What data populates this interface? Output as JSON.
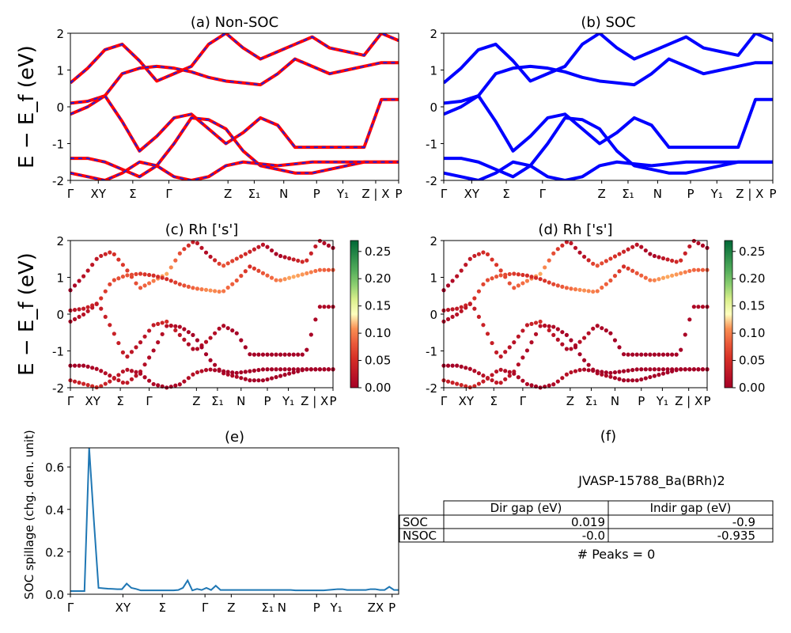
{
  "figure": {
    "ylabel_band": "E − E_f (eV)",
    "ylabel_spillage": "SOC spillage (chg. den. unit)"
  },
  "chart_data": [
    {
      "type": "line",
      "panel": "a",
      "title": "(a) Non-SOC",
      "ylim": [
        -2,
        2
      ],
      "y_ticks": [
        "-2",
        "-1",
        "0",
        "1",
        "2"
      ],
      "x_ticks": [
        "Γ",
        "XY",
        "Σ",
        "Γ",
        "Z",
        "Σ₁",
        "N",
        "P",
        "Y₁",
        "Z | X",
        "P"
      ],
      "style": "red-solid-with-blue-dashes",
      "colors": {
        "band": "#ff0000",
        "dash": "#1f1fe0"
      },
      "series": [
        {
          "values": [
            0.65,
            1.05,
            1.55,
            1.7,
            1.25,
            0.7,
            0.9,
            1.1,
            1.7,
            2.0,
            1.6,
            1.3,
            1.5,
            1.7,
            1.9,
            1.6,
            1.5,
            1.4,
            2.0,
            1.8
          ]
        },
        {
          "values": [
            0.1,
            0.15,
            0.3,
            0.9,
            1.05,
            1.1,
            1.05,
            0.95,
            0.8,
            0.7,
            0.65,
            0.6,
            0.9,
            1.3,
            1.1,
            0.9,
            1.0,
            1.1,
            1.2,
            1.2
          ]
        },
        {
          "values": [
            -0.2,
            0.0,
            0.3,
            -0.4,
            -1.2,
            -0.8,
            -0.3,
            -0.2,
            -0.6,
            -1.0,
            -0.7,
            -0.3,
            -0.5,
            -1.1,
            -1.1,
            -1.1,
            -1.1,
            -1.1,
            0.2,
            0.2
          ]
        },
        {
          "values": [
            -1.4,
            -1.4,
            -1.5,
            -1.7,
            -1.9,
            -1.6,
            -1.0,
            -0.3,
            -0.35,
            -0.6,
            -1.2,
            -1.6,
            -1.7,
            -1.8,
            -1.8,
            -1.7,
            -1.6,
            -1.5,
            -1.5,
            -1.5
          ]
        },
        {
          "values": [
            -1.8,
            -1.9,
            -2.0,
            -1.8,
            -1.5,
            -1.6,
            -1.9,
            -2.0,
            -1.9,
            -1.6,
            -1.5,
            -1.55,
            -1.6,
            -1.55,
            -1.5,
            -1.5,
            -1.5,
            -1.5,
            -1.5,
            -1.5
          ]
        }
      ]
    },
    {
      "type": "line",
      "panel": "b",
      "title": "(b) SOC",
      "ylim": [
        -2,
        2
      ],
      "y_ticks": [
        "-2",
        "-1",
        "0",
        "1",
        "2"
      ],
      "x_ticks": [
        "Γ",
        "XY",
        "Σ",
        "Γ",
        "Z",
        "Σ₁",
        "N",
        "P",
        "Y₁",
        "Z | X",
        "P"
      ],
      "colors": {
        "band": "#0000ff"
      },
      "series": [
        {
          "values": [
            0.65,
            1.05,
            1.55,
            1.7,
            1.25,
            0.7,
            0.9,
            1.1,
            1.7,
            2.0,
            1.6,
            1.3,
            1.5,
            1.7,
            1.9,
            1.6,
            1.5,
            1.4,
            2.0,
            1.8
          ]
        },
        {
          "values": [
            0.1,
            0.15,
            0.3,
            0.9,
            1.05,
            1.1,
            1.05,
            0.95,
            0.8,
            0.7,
            0.65,
            0.6,
            0.9,
            1.3,
            1.1,
            0.9,
            1.0,
            1.1,
            1.2,
            1.2
          ]
        },
        {
          "values": [
            -0.2,
            0.0,
            0.3,
            -0.4,
            -1.2,
            -0.8,
            -0.3,
            -0.2,
            -0.6,
            -1.0,
            -0.7,
            -0.3,
            -0.5,
            -1.1,
            -1.1,
            -1.1,
            -1.1,
            -1.1,
            0.2,
            0.2
          ]
        },
        {
          "values": [
            -1.4,
            -1.4,
            -1.5,
            -1.7,
            -1.9,
            -1.6,
            -1.0,
            -0.3,
            -0.35,
            -0.6,
            -1.2,
            -1.6,
            -1.7,
            -1.8,
            -1.8,
            -1.7,
            -1.6,
            -1.5,
            -1.5,
            -1.5
          ]
        },
        {
          "values": [
            -1.8,
            -1.9,
            -2.0,
            -1.8,
            -1.5,
            -1.6,
            -1.9,
            -2.0,
            -1.9,
            -1.6,
            -1.5,
            -1.55,
            -1.6,
            -1.55,
            -1.5,
            -1.5,
            -1.5,
            -1.5,
            -1.5,
            -1.5
          ]
        }
      ]
    },
    {
      "type": "scatter",
      "panel": "c",
      "title": "(c)  Rh ['s']",
      "ylim": [
        -2,
        2
      ],
      "y_ticks": [
        "-2",
        "-1",
        "0",
        "1",
        "2"
      ],
      "x_ticks": [
        "Γ",
        "XY",
        "Σ",
        "Γ",
        "Z",
        "Σ₁",
        "N",
        "P",
        "Y₁",
        "Z | X",
        "P"
      ],
      "colorbar": {
        "ticks": [
          "0.00",
          "0.05",
          "0.10",
          "0.15",
          "0.20",
          "0.25"
        ],
        "range": [
          0,
          0.27
        ],
        "colormap": "RdYlGn"
      },
      "series": [
        {
          "values": [
            0.65,
            1.05,
            1.55,
            1.7,
            1.25,
            0.7,
            0.9,
            1.1,
            1.7,
            2.0,
            1.6,
            1.3,
            1.5,
            1.7,
            1.9,
            1.6,
            1.5,
            1.4,
            2.0,
            1.8
          ],
          "weights": [
            0.0,
            0.02,
            0.03,
            0.05,
            0.06,
            0.08,
            0.1,
            0.12,
            0.07,
            0.03,
            0.01,
            0.08,
            0.06,
            0.04,
            0.02,
            0.0,
            0.03,
            0.05,
            0.02,
            0.0
          ]
        },
        {
          "values": [
            0.1,
            0.15,
            0.3,
            0.9,
            1.05,
            1.1,
            1.05,
            0.95,
            0.8,
            0.7,
            0.65,
            0.6,
            0.9,
            1.3,
            1.1,
            0.9,
            1.0,
            1.1,
            1.2,
            1.2
          ],
          "weights": [
            0.02,
            0.03,
            0.05,
            0.07,
            0.08,
            0.06,
            0.05,
            0.05,
            0.07,
            0.09,
            0.11,
            0.1,
            0.08,
            0.05,
            0.08,
            0.1,
            0.12,
            0.11,
            0.09,
            0.08
          ]
        },
        {
          "values": [
            -0.2,
            0.0,
            0.3,
            -0.4,
            -1.2,
            -0.8,
            -0.3,
            -0.2,
            -0.6,
            -1.0,
            -0.7,
            -0.3,
            -0.5,
            -1.1,
            -1.1,
            -1.1,
            -1.1,
            -1.1,
            0.2,
            0.2
          ],
          "weights": [
            0.01,
            0.02,
            0.03,
            0.04,
            0.03,
            0.02,
            0.03,
            0.05,
            0.02,
            0.01,
            0.02,
            0.01,
            0.0,
            0.0,
            0.0,
            0.0,
            0.0,
            0.0,
            0.01,
            0.01
          ]
        },
        {
          "values": [
            -1.4,
            -1.4,
            -1.5,
            -1.7,
            -1.9,
            -1.6,
            -1.0,
            -0.3,
            -0.35,
            -0.6,
            -1.2,
            -1.6,
            -1.7,
            -1.8,
            -1.8,
            -1.7,
            -1.6,
            -1.5,
            -1.5,
            -1.5
          ],
          "weights": [
            0.0,
            0.0,
            0.01,
            0.02,
            0.03,
            0.02,
            0.01,
            0.02,
            0.01,
            0.0,
            0.0,
            0.01,
            0.01,
            0.0,
            0.0,
            0.0,
            0.0,
            0.0,
            0.0,
            0.0
          ]
        },
        {
          "values": [
            -1.8,
            -1.9,
            -2.0,
            -1.8,
            -1.5,
            -1.6,
            -1.9,
            -2.0,
            -1.9,
            -1.6,
            -1.5,
            -1.55,
            -1.6,
            -1.55,
            -1.5,
            -1.5,
            -1.5,
            -1.5,
            -1.5,
            -1.5
          ],
          "weights": [
            0.03,
            0.04,
            0.05,
            0.03,
            0.02,
            0.01,
            0.01,
            0.0,
            0.01,
            0.02,
            0.01,
            0.0,
            0.0,
            0.0,
            0.0,
            0.0,
            0.0,
            0.0,
            0.0,
            0.0
          ]
        }
      ]
    },
    {
      "type": "scatter",
      "panel": "d",
      "title": "(d) Rh ['s']",
      "ylim": [
        -2,
        2
      ],
      "y_ticks": [
        "-2",
        "-1",
        "0",
        "1",
        "2"
      ],
      "x_ticks": [
        "Γ",
        "XY",
        "Σ",
        "Γ",
        "Z",
        "Σ₁",
        "N",
        "P",
        "Y₁",
        "Z | X",
        "P"
      ],
      "colorbar": {
        "ticks": [
          "0.00",
          "0.05",
          "0.10",
          "0.15",
          "0.20",
          "0.25"
        ],
        "range": [
          0,
          0.27
        ],
        "colormap": "RdYlGn"
      },
      "series": [
        {
          "values": [
            0.65,
            1.05,
            1.55,
            1.7,
            1.25,
            0.7,
            0.9,
            1.1,
            1.7,
            2.0,
            1.6,
            1.3,
            1.5,
            1.7,
            1.9,
            1.6,
            1.5,
            1.4,
            2.0,
            1.8
          ],
          "weights": [
            0.0,
            0.02,
            0.03,
            0.05,
            0.06,
            0.08,
            0.1,
            0.12,
            0.07,
            0.03,
            0.01,
            0.08,
            0.06,
            0.04,
            0.02,
            0.0,
            0.03,
            0.05,
            0.02,
            0.0
          ]
        },
        {
          "values": [
            0.1,
            0.15,
            0.3,
            0.9,
            1.05,
            1.1,
            1.05,
            0.95,
            0.8,
            0.7,
            0.65,
            0.6,
            0.9,
            1.3,
            1.1,
            0.9,
            1.0,
            1.1,
            1.2,
            1.2
          ],
          "weights": [
            0.02,
            0.03,
            0.05,
            0.07,
            0.08,
            0.06,
            0.05,
            0.05,
            0.07,
            0.09,
            0.11,
            0.1,
            0.08,
            0.05,
            0.08,
            0.1,
            0.12,
            0.11,
            0.09,
            0.08
          ]
        },
        {
          "values": [
            -0.2,
            0.0,
            0.3,
            -0.4,
            -1.2,
            -0.8,
            -0.3,
            -0.2,
            -0.6,
            -1.0,
            -0.7,
            -0.3,
            -0.5,
            -1.1,
            -1.1,
            -1.1,
            -1.1,
            -1.1,
            0.2,
            0.2
          ],
          "weights": [
            0.01,
            0.02,
            0.03,
            0.04,
            0.03,
            0.02,
            0.03,
            0.05,
            0.02,
            0.01,
            0.02,
            0.01,
            0.0,
            0.0,
            0.0,
            0.0,
            0.0,
            0.0,
            0.01,
            0.01
          ]
        },
        {
          "values": [
            -1.4,
            -1.4,
            -1.5,
            -1.7,
            -1.9,
            -1.6,
            -1.0,
            -0.3,
            -0.35,
            -0.6,
            -1.2,
            -1.6,
            -1.7,
            -1.8,
            -1.8,
            -1.7,
            -1.6,
            -1.5,
            -1.5,
            -1.5
          ],
          "weights": [
            0.0,
            0.0,
            0.01,
            0.02,
            0.03,
            0.02,
            0.01,
            0.02,
            0.01,
            0.0,
            0.0,
            0.01,
            0.01,
            0.0,
            0.0,
            0.0,
            0.0,
            0.0,
            0.0,
            0.0
          ]
        },
        {
          "values": [
            -1.8,
            -1.9,
            -2.0,
            -1.8,
            -1.5,
            -1.6,
            -1.9,
            -2.0,
            -1.9,
            -1.6,
            -1.5,
            -1.55,
            -1.6,
            -1.55,
            -1.5,
            -1.5,
            -1.5,
            -1.5,
            -1.5,
            -1.5
          ],
          "weights": [
            0.03,
            0.04,
            0.05,
            0.03,
            0.02,
            0.01,
            0.01,
            0.0,
            0.01,
            0.02,
            0.01,
            0.0,
            0.0,
            0.0,
            0.0,
            0.0,
            0.0,
            0.0,
            0.0,
            0.0
          ]
        }
      ]
    },
    {
      "type": "line",
      "panel": "e",
      "title": "(e)",
      "ylabel": "SOC spillage (chg. den. unit)",
      "ylim": [
        0,
        0.69
      ],
      "y_ticks": [
        "0.0",
        "0.2",
        "0.4",
        "0.6"
      ],
      "x_ticks": [
        "Γ",
        "XY",
        "Σ",
        "Γ",
        "Z",
        "Σ₁ N",
        "P",
        "Y₁",
        "ZX",
        "P"
      ],
      "colors": {
        "line": "#1f77b4"
      },
      "series": [
        {
          "values": [
            0.015,
            0.015,
            0.015,
            0.015,
            0.69,
            0.35,
            0.03,
            0.028,
            0.026,
            0.025,
            0.024,
            0.024,
            0.05,
            0.03,
            0.025,
            0.018,
            0.018,
            0.018,
            0.018,
            0.018,
            0.018,
            0.018,
            0.018,
            0.02,
            0.03,
            0.065,
            0.018,
            0.025,
            0.02,
            0.03,
            0.02,
            0.04,
            0.02,
            0.02,
            0.02,
            0.02,
            0.02,
            0.02,
            0.02,
            0.02,
            0.02,
            0.02,
            0.02,
            0.02,
            0.02,
            0.02,
            0.02,
            0.02,
            0.018,
            0.018,
            0.018,
            0.018,
            0.018,
            0.018,
            0.018,
            0.02,
            0.022,
            0.024,
            0.024,
            0.02,
            0.02,
            0.02,
            0.02,
            0.02,
            0.024,
            0.024,
            0.02,
            0.02,
            0.035,
            0.02,
            0.02
          ]
        }
      ]
    },
    {
      "type": "table",
      "panel": "f",
      "title": "(f)",
      "caption": "JVASP-15788_Ba(BRh)2",
      "columns": [
        "Dir gap (eV)",
        "Indir gap (eV)"
      ],
      "rows": [
        {
          "label": "SOC",
          "cells": [
            "0.019",
            "-0.9"
          ]
        },
        {
          "label": "NSOC",
          "cells": [
            "-0.0",
            "-0.935"
          ]
        }
      ],
      "footer": "# Peaks = 0"
    }
  ]
}
